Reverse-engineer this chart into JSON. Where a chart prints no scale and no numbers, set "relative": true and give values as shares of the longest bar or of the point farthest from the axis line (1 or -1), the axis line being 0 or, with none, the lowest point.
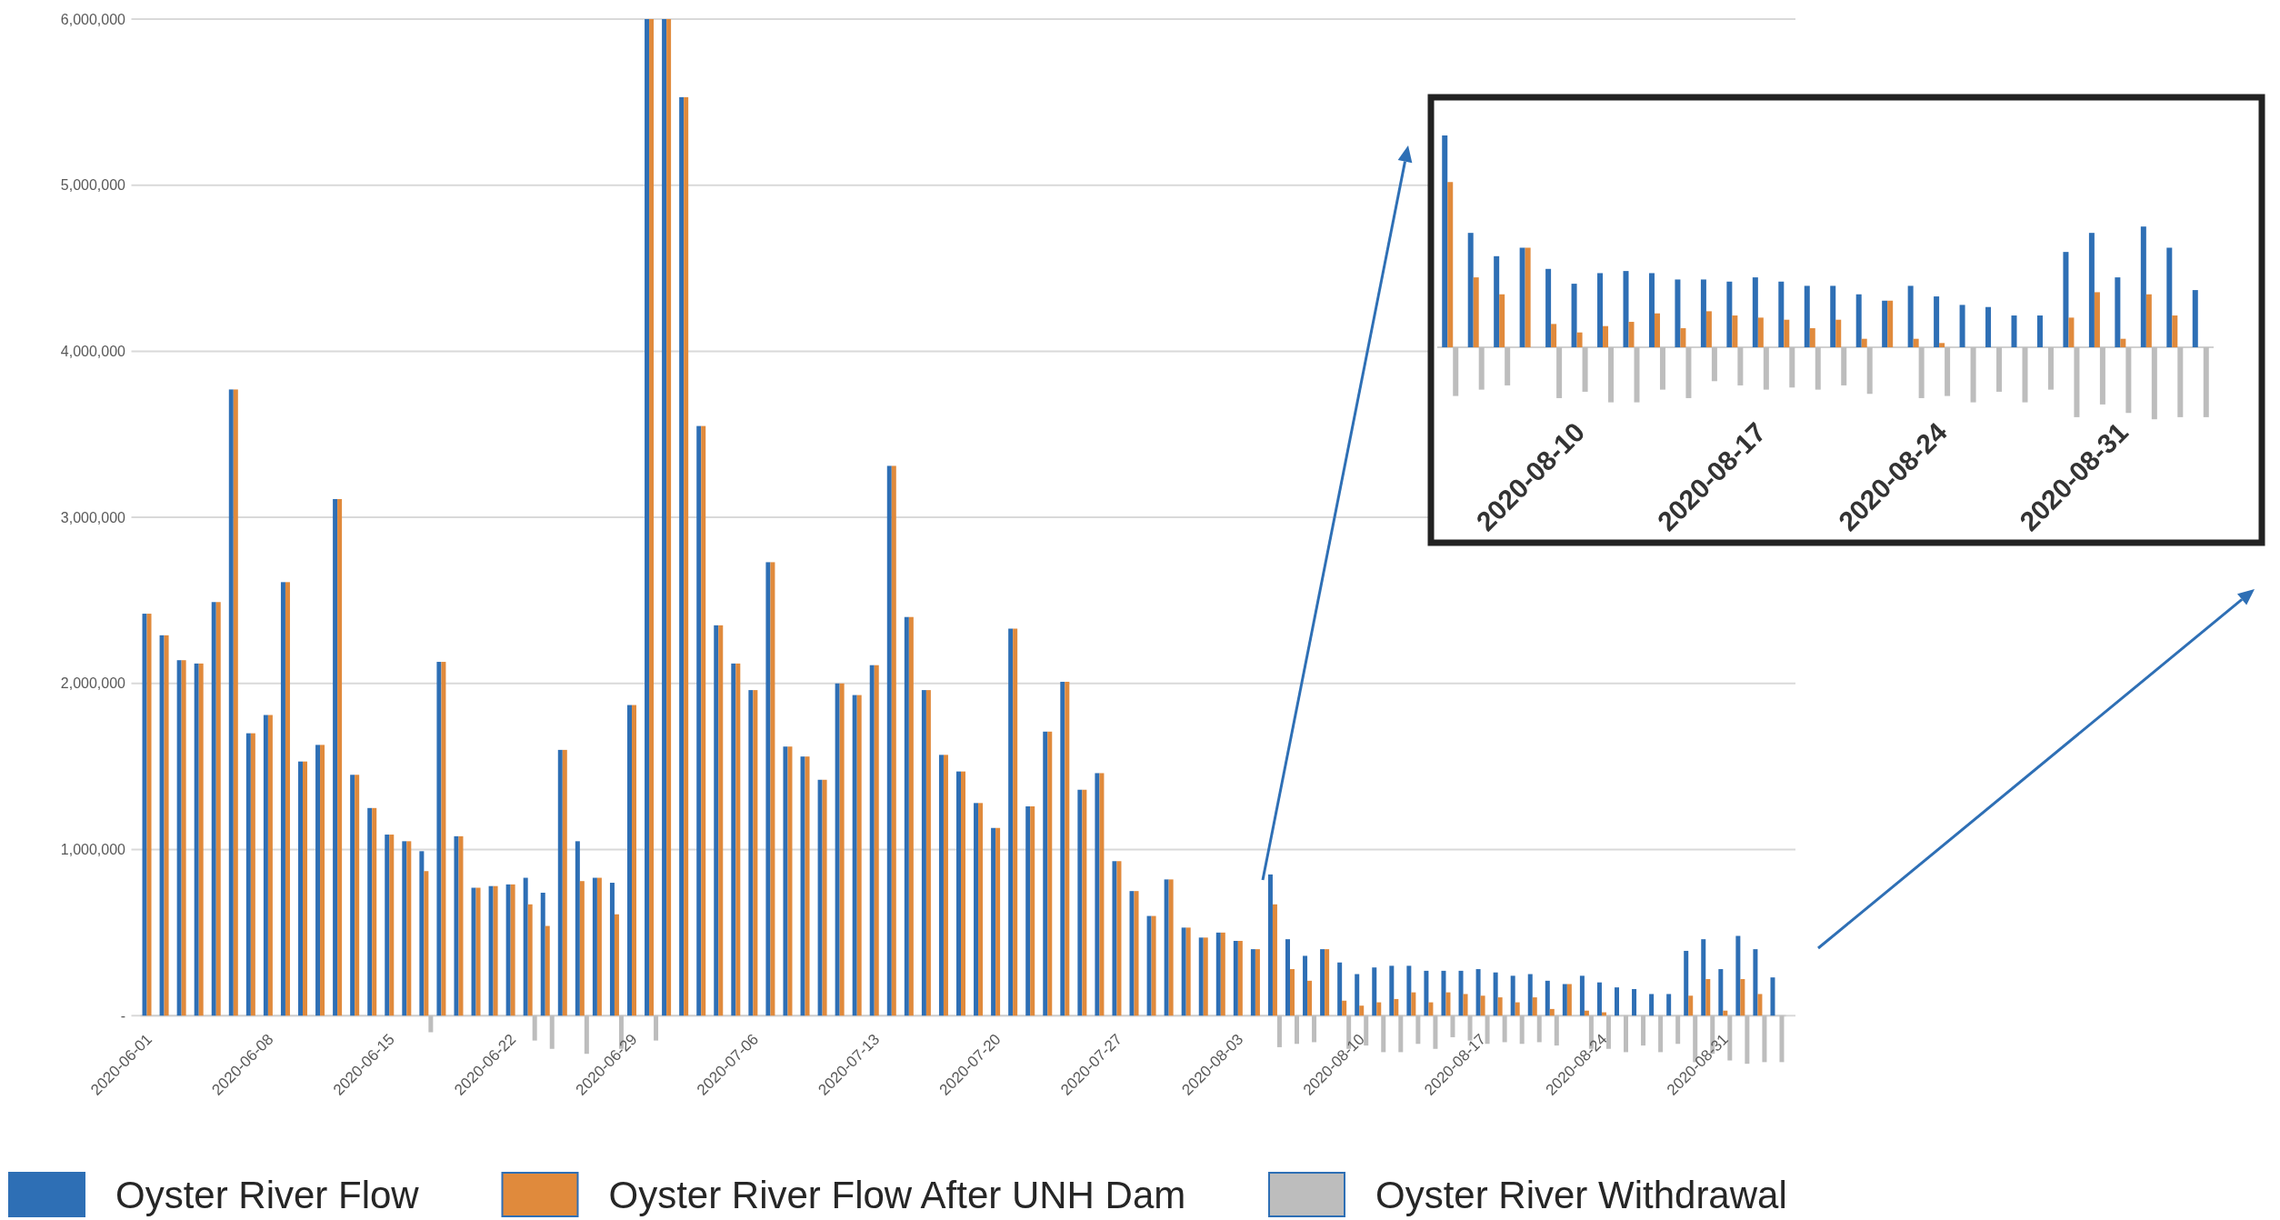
{
  "chart_data": [
    {
      "type": "bar",
      "categories": [
        "2020-06-01",
        null,
        null,
        null,
        null,
        null,
        null,
        "2020-06-08",
        null,
        null,
        null,
        null,
        null,
        null,
        "2020-06-15",
        null,
        null,
        null,
        null,
        null,
        null,
        "2020-06-22",
        null,
        null,
        null,
        null,
        null,
        null,
        "2020-06-29",
        null,
        null,
        null,
        null,
        null,
        null,
        "2020-07-06",
        null,
        null,
        null,
        null,
        null,
        null,
        "2020-07-13",
        null,
        null,
        null,
        null,
        null,
        null,
        "2020-07-20",
        null,
        null,
        null,
        null,
        null,
        null,
        "2020-07-27",
        null,
        null,
        null,
        null,
        null,
        null,
        "2020-08-03",
        null,
        null,
        null,
        null,
        null,
        null,
        "2020-08-10",
        null,
        null,
        null,
        null,
        null,
        null,
        "2020-08-17",
        null,
        null,
        null,
        null,
        null,
        null,
        "2020-08-24",
        null,
        null,
        null,
        null,
        null,
        null,
        "2020-08-31",
        null,
        null,
        null
      ],
      "series": [
        {
          "name": "Oyster River Flow",
          "color": "#2e6fb5",
          "values": [
            2420000,
            2290000,
            2140000,
            2120000,
            2490000,
            3770000,
            1700000,
            1810000,
            2610000,
            1530000,
            1630000,
            3110000,
            1450000,
            1250000,
            1090000,
            1050000,
            990000,
            2130000,
            1080000,
            770000,
            780000,
            790000,
            830000,
            740000,
            1600000,
            1050000,
            830000,
            800000,
            1870000,
            6000000,
            6000000,
            5530000,
            3550000,
            2350000,
            2120000,
            1960000,
            2730000,
            1620000,
            1560000,
            1420000,
            2000000,
            1930000,
            2110000,
            3310000,
            2400000,
            1960000,
            1570000,
            1470000,
            1280000,
            1130000,
            2330000,
            1260000,
            1710000,
            2010000,
            1360000,
            1460000,
            930000,
            750000,
            600000,
            820000,
            530000,
            470000,
            500000,
            450000,
            400000,
            850000,
            460000,
            360000,
            400000,
            320000,
            250000,
            290000,
            300000,
            300000,
            270000,
            270000,
            270000,
            280000,
            260000,
            240000,
            250000,
            210000,
            190000,
            240000,
            200000,
            170000,
            160000,
            130000,
            130000,
            390000,
            460000,
            280000,
            480000,
            400000,
            230000
          ]
        },
        {
          "name": "Oyster River Flow After UNH Dam",
          "color": "#e08a3c",
          "values": [
            2420000,
            2290000,
            2140000,
            2120000,
            2490000,
            3770000,
            1700000,
            1810000,
            2610000,
            1530000,
            1630000,
            3110000,
            1450000,
            1250000,
            1090000,
            1050000,
            870000,
            2130000,
            1080000,
            770000,
            780000,
            790000,
            670000,
            540000,
            1600000,
            810000,
            830000,
            610000,
            1870000,
            6000000,
            6000000,
            5530000,
            3550000,
            2350000,
            2120000,
            1960000,
            2730000,
            1620000,
            1560000,
            1420000,
            2000000,
            1930000,
            2110000,
            3310000,
            2400000,
            1960000,
            1570000,
            1470000,
            1280000,
            1130000,
            2330000,
            1260000,
            1710000,
            2010000,
            1360000,
            1460000,
            930000,
            750000,
            600000,
            820000,
            530000,
            470000,
            500000,
            450000,
            400000,
            670000,
            280000,
            210000,
            400000,
            90000,
            60000,
            80000,
            100000,
            140000,
            80000,
            140000,
            130000,
            120000,
            110000,
            80000,
            110000,
            40000,
            190000,
            30000,
            20000,
            null,
            null,
            null,
            null,
            120000,
            220000,
            30000,
            220000,
            130000,
            null
          ]
        },
        {
          "name": "Oyster River Withdrawal",
          "color": "#bdbdbd",
          "values": [
            null,
            null,
            null,
            null,
            null,
            null,
            null,
            null,
            null,
            null,
            null,
            null,
            null,
            null,
            null,
            null,
            -100000,
            null,
            null,
            null,
            null,
            null,
            -150000,
            -200000,
            null,
            -230000,
            null,
            -200000,
            null,
            -150000,
            null,
            null,
            null,
            null,
            null,
            null,
            null,
            null,
            null,
            null,
            null,
            null,
            null,
            null,
            null,
            null,
            null,
            null,
            null,
            null,
            null,
            null,
            null,
            null,
            null,
            null,
            null,
            null,
            null,
            null,
            null,
            null,
            null,
            null,
            null,
            -190000,
            -170000,
            -160000,
            null,
            -200000,
            -180000,
            -220000,
            -220000,
            -170000,
            -200000,
            -130000,
            -150000,
            -170000,
            -160000,
            -170000,
            -160000,
            -180000,
            null,
            -200000,
            -200000,
            -220000,
            -180000,
            -220000,
            -170000,
            -280000,
            -230000,
            -270000,
            -290000,
            -280000,
            -280000
          ]
        }
      ],
      "ylim": [
        -300000,
        6000000
      ],
      "yticks": [
        {
          "value": 0,
          "label": "-"
        },
        {
          "value": 1000000,
          "label": "1,000,000"
        },
        {
          "value": 2000000,
          "label": "2,000,000"
        },
        {
          "value": 3000000,
          "label": "3,000,000"
        },
        {
          "value": 4000000,
          "label": "4,000,000"
        },
        {
          "value": 5000000,
          "label": "5,000,000"
        },
        {
          "value": 6000000,
          "label": "6,000,000"
        }
      ],
      "grid": "y",
      "legend": "bottom"
    },
    {
      "type": "bar",
      "relative": true,
      "categories": [
        null,
        null,
        null,
        null,
        null,
        "2020-08-10",
        null,
        null,
        null,
        null,
        null,
        null,
        "2020-08-17",
        null,
        null,
        null,
        null,
        null,
        null,
        "2020-08-24",
        null,
        null,
        null,
        null,
        null,
        null,
        "2020-08-31",
        null,
        null,
        null
      ],
      "series": [
        {
          "color": "#2e6fb5",
          "values": [
            1,
            0.54,
            0.43,
            0.47,
            0.37,
            0.3,
            0.35,
            0.36,
            0.35,
            0.32,
            0.32,
            0.31,
            0.33,
            0.31,
            0.29,
            0.29,
            0.25,
            0.22,
            0.29,
            0.24,
            0.2,
            0.19,
            0.15,
            0.15,
            0.45,
            0.54,
            0.33,
            0.57,
            0.47,
            0.27
          ]
        },
        {
          "color": "#e08a3c",
          "values": [
            0.78,
            0.33,
            0.25,
            0.47,
            0.11,
            0.07,
            0.1,
            0.12,
            0.16,
            0.09,
            0.17,
            0.15,
            0.14,
            0.13,
            0.09,
            0.13,
            0.04,
            0.22,
            0.04,
            0.02,
            null,
            null,
            null,
            null,
            0.14,
            0.26,
            0.04,
            0.25,
            0.15,
            null
          ]
        },
        {
          "color": "#bdbdbd",
          "values": [
            -0.23,
            -0.2,
            -0.18,
            null,
            -0.24,
            -0.21,
            -0.26,
            -0.26,
            -0.2,
            -0.24,
            -0.16,
            -0.18,
            -0.2,
            -0.19,
            -0.2,
            -0.18,
            -0.22,
            null,
            -0.24,
            -0.23,
            -0.26,
            -0.21,
            -0.26,
            -0.2,
            -0.33,
            -0.27,
            -0.31,
            -0.34,
            -0.33,
            -0.33
          ]
        }
      ]
    }
  ]
}
